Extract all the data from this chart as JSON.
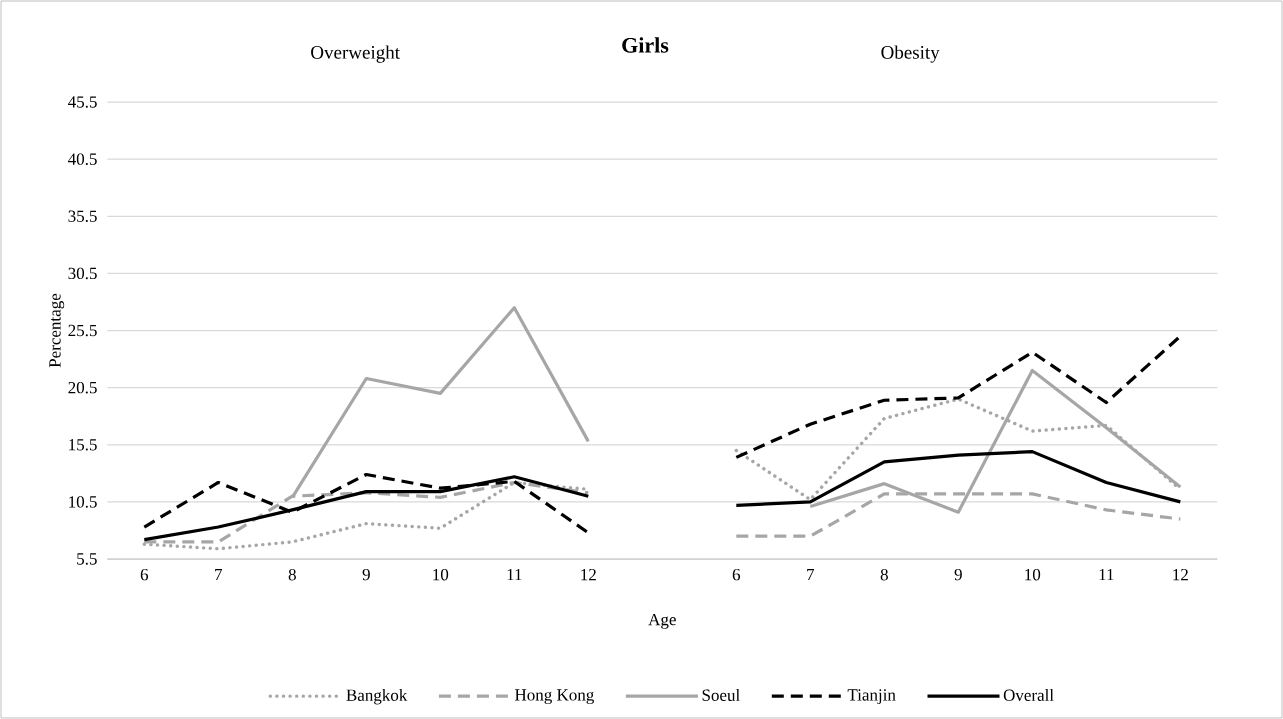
{
  "chart_data": {
    "type": "line",
    "title": "Girls",
    "xlabel": "Age",
    "ylabel": "Percentage",
    "annotations": [
      "Overweight",
      "Obesity"
    ],
    "categories": [
      "6",
      "7",
      "8",
      "9",
      "10",
      "11",
      "12",
      null,
      "6",
      "7",
      "8",
      "9",
      "10",
      "11",
      "12"
    ],
    "series": [
      {
        "name": "Bangkok",
        "color": "#a6a6a6",
        "line_style": "dotted",
        "values": [
          6.8,
          6.4,
          7.0,
          8.6,
          8.2,
          12.2,
          11.6,
          null,
          15.0,
          10.7,
          17.8,
          19.5,
          16.7,
          17.2,
          11.6
        ]
      },
      {
        "name": "Hong Kong",
        "color": "#a6a6a6",
        "line_style": "dashed",
        "values": [
          7.0,
          7.0,
          11.0,
          11.3,
          10.9,
          12.2,
          11.3,
          null,
          7.5,
          7.5,
          11.2,
          11.2,
          11.2,
          9.8,
          9.0
        ]
      },
      {
        "name": "Soeul",
        "color": "#a6a6a6",
        "line_style": "solid",
        "values": [
          null,
          null,
          10.9,
          21.3,
          20.0,
          27.5,
          15.8,
          null,
          null,
          10.1,
          12.1,
          9.6,
          22.0,
          17.0,
          11.8
        ]
      },
      {
        "name": "Tianjin",
        "color": "#000000",
        "line_style": "dashed",
        "values": [
          8.3,
          12.2,
          9.6,
          12.9,
          11.7,
          12.3,
          7.8,
          null,
          14.4,
          17.3,
          19.4,
          19.6,
          23.6,
          19.2,
          25.0
        ]
      },
      {
        "name": "Overall",
        "color": "#000000",
        "line_style": "solid",
        "values": [
          7.2,
          8.3,
          9.8,
          11.4,
          11.4,
          12.7,
          11.0,
          null,
          10.2,
          10.5,
          14.0,
          14.6,
          14.9,
          12.2,
          10.5
        ]
      }
    ],
    "ylim": [
      5.5,
      45.5
    ],
    "yticks": [
      5.5,
      10.5,
      15.5,
      20.5,
      25.5,
      30.5,
      35.5,
      40.5,
      45.5
    ],
    "grid": "y",
    "legend": "bottom",
    "marker": "none"
  }
}
